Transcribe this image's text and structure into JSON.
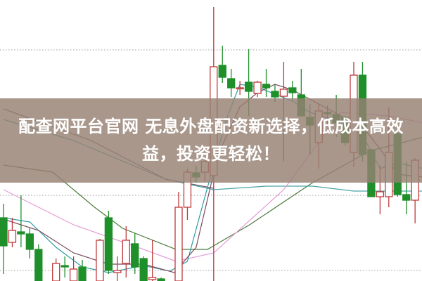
{
  "headline": {
    "line1": "配查网平台官网 无息外盘配资新选择，低成本高效",
    "line2": "益，投资更轻松！"
  },
  "colors": {
    "up": "#c0393b",
    "down": "#1f8f2a",
    "banner": "#968073",
    "grid": "#9a9a9a"
  },
  "chart_data": {
    "type": "candlestick",
    "title": "",
    "xlabel": "",
    "ylabel": "",
    "ylim": [
      0,
      100
    ],
    "grid": true,
    "gridlines": [
      82.25,
      30.5,
      3.75
    ],
    "candles": [
      [
        22.5,
        27.5,
        2.5,
        12.5
      ],
      [
        13.75,
        22.5,
        12,
        18
      ],
      [
        17.5,
        30.5,
        12,
        16.75
      ],
      [
        16.75,
        18.75,
        8,
        11.25
      ],
      [
        11.25,
        13,
        -4,
        -2
      ],
      [
        -2,
        -1,
        -8,
        -6
      ],
      [
        -2,
        8,
        -4,
        6.25
      ],
      [
        5.5,
        8.75,
        1.25,
        5
      ],
      [
        -2,
        8.75,
        -4,
        4.25
      ],
      [
        5,
        7.5,
        -4,
        -2
      ],
      [
        -2,
        0,
        -7,
        -5
      ],
      [
        -2,
        15,
        -4,
        14.5
      ],
      [
        22.5,
        25,
        2.5,
        3.75
      ],
      [
        3,
        8.75,
        -2,
        3.75
      ],
      [
        6.25,
        19.5,
        1.25,
        14.5
      ],
      [
        13.25,
        17,
        2.5,
        5
      ],
      [
        8,
        8.75,
        -4,
        -2
      ],
      [
        0.5,
        14.5,
        -2,
        1.25
      ],
      [
        0.75,
        1.25,
        -3,
        -1
      ],
      [
        -3,
        0,
        -5,
        -1
      ],
      [
        -2,
        31.75,
        -4,
        26.25
      ],
      [
        26.25,
        40,
        21.75,
        38.75
      ],
      [
        38.5,
        41,
        35,
        37
      ],
      [
        38.75,
        44,
        35.5,
        42.5
      ],
      [
        37.5,
        97.5,
        -4,
        76.25
      ],
      [
        76.75,
        83.75,
        70.5,
        72.5
      ],
      [
        72,
        75.5,
        65.5,
        68.75
      ],
      [
        68.75,
        71.25,
        66.25,
        68.75
      ],
      [
        70.75,
        82.5,
        58.75,
        67.5
      ],
      [
        66.75,
        71.25,
        65.5,
        70.75
      ],
      [
        70,
        75.5,
        65.5,
        68.75
      ],
      [
        67.5,
        70,
        63.75,
        65.5
      ],
      [
        65.75,
        78,
        42.5,
        68.25
      ],
      [
        68.75,
        71.25,
        64.25,
        67
      ],
      [
        66.25,
        75.5,
        58.75,
        58.75
      ],
      [
        58.25,
        63,
        45,
        55.5
      ],
      [
        49.25,
        63,
        40,
        60.5
      ],
      [
        60,
        62.5,
        55,
        59.5
      ],
      [
        59.25,
        66.25,
        51.25,
        56.25
      ],
      [
        58.25,
        58.75,
        48.25,
        49.25
      ],
      [
        45.75,
        78,
        40.5,
        73.25
      ],
      [
        73.25,
        78,
        42.5,
        45
      ],
      [
        46.75,
        47,
        30,
        30
      ],
      [
        30,
        41.25,
        23.75,
        31.75
      ],
      [
        30,
        61.75,
        26.25,
        45.75
      ],
      [
        52.5,
        53,
        30,
        30.75
      ],
      [
        30.75,
        42.5,
        23.75,
        28.75
      ],
      [
        28.75,
        43.75,
        20.5,
        43
      ]
    ],
    "ohlc_order": [
      "open",
      "high",
      "low",
      "close"
    ],
    "moving_averages": [
      {
        "color": "#4a7a3a",
        "points": [
          [
            0,
            41.25
          ],
          [
            5.6,
            38.75
          ],
          [
            10.4,
            26.25
          ],
          [
            13.6,
            18.75
          ],
          [
            19.7,
            11.25
          ],
          [
            23.3,
            11.25
          ],
          [
            28.1,
            20
          ],
          [
            35.3,
            35
          ],
          [
            41.8,
            46.25
          ],
          [
            48,
            51.25
          ]
        ]
      },
      {
        "color": "#4aa3a8",
        "points": [
          [
            0,
            57.5
          ],
          [
            8,
            50
          ],
          [
            18.5,
            36.25
          ],
          [
            24,
            32.5
          ],
          [
            30,
            33.75
          ],
          [
            35.3,
            33.75
          ],
          [
            40,
            32
          ],
          [
            48,
            32
          ]
        ]
      },
      {
        "color": "#6a5a6a",
        "points": [
          [
            0,
            61.25
          ],
          [
            10,
            50
          ],
          [
            18.5,
            36.25
          ],
          [
            24,
            33
          ]
        ]
      },
      {
        "color": "#e59ad8",
        "points": [
          [
            0,
            32.5
          ],
          [
            8,
            20
          ],
          [
            16,
            11.25
          ],
          [
            19.7,
            7
          ],
          [
            24,
            10
          ],
          [
            32,
            32.5
          ],
          [
            38.5,
            60
          ],
          [
            44,
            58.75
          ],
          [
            48,
            56.25
          ]
        ]
      },
      {
        "color": "#2f9aa5",
        "points": [
          [
            0,
            22.5
          ],
          [
            3,
            21
          ],
          [
            6,
            12
          ],
          [
            9,
            5
          ],
          [
            12,
            3
          ],
          [
            16,
            5.5
          ],
          [
            19,
            3.5
          ],
          [
            21,
            7
          ],
          [
            23,
            30
          ],
          [
            25.5,
            58
          ],
          [
            27,
            70
          ],
          [
            29,
            69
          ],
          [
            31,
            66.5
          ],
          [
            33,
            64
          ],
          [
            35,
            60
          ],
          [
            37,
            58
          ],
          [
            39,
            56
          ],
          [
            41,
            52
          ],
          [
            43,
            40
          ],
          [
            45,
            42
          ],
          [
            48,
            40
          ]
        ]
      },
      {
        "color": "#7a4a5a",
        "points": [
          [
            0,
            22
          ],
          [
            4,
            18
          ],
          [
            8,
            10
          ],
          [
            12,
            6
          ],
          [
            16,
            6
          ],
          [
            19.5,
            3
          ],
          [
            22,
            12
          ],
          [
            24.5,
            45
          ],
          [
            27,
            62
          ],
          [
            29,
            67
          ],
          [
            31,
            70
          ],
          [
            33,
            68
          ],
          [
            36,
            63
          ],
          [
            39,
            58
          ],
          [
            41,
            55
          ],
          [
            43,
            47
          ],
          [
            45,
            38
          ],
          [
            48,
            37
          ]
        ]
      }
    ]
  }
}
